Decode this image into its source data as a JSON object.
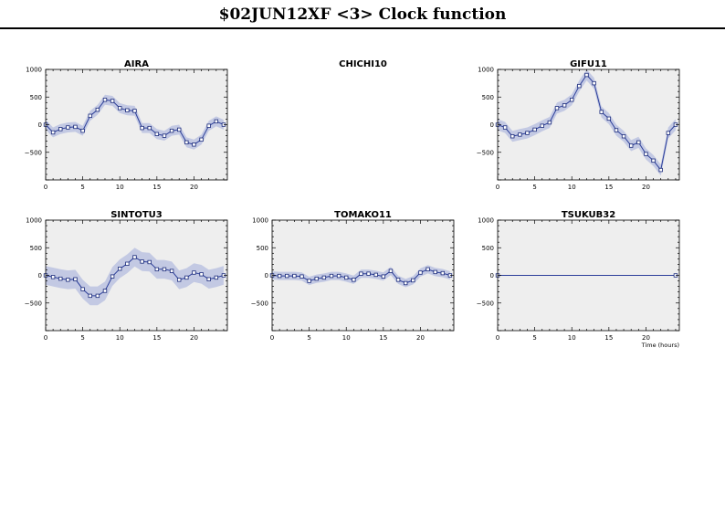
{
  "header": {
    "title": "$02JUN12XF <3>  Clock function"
  },
  "chart_data": [
    {
      "type": "line",
      "title": "AIRA",
      "xlabel": "",
      "xlim": [
        0,
        24.5
      ],
      "ylim": [
        -1000,
        1000
      ],
      "xticks": [
        0,
        5,
        10,
        15,
        20
      ],
      "yticks": [
        -500,
        0,
        500,
        1000
      ],
      "band": 90,
      "x": [
        0,
        1,
        2,
        3,
        4,
        5,
        6,
        7,
        8,
        9,
        10,
        11,
        12,
        13,
        14,
        15,
        16,
        17,
        18,
        19,
        20,
        21,
        22,
        23,
        24
      ],
      "values": [
        0,
        -140,
        -80,
        -50,
        -40,
        -110,
        160,
        270,
        450,
        430,
        300,
        260,
        250,
        -60,
        -60,
        -170,
        -200,
        -110,
        -90,
        -320,
        -360,
        -270,
        -20,
        60,
        0
      ]
    },
    {
      "type": "line",
      "title": "CHICHI10",
      "empty": true
    },
    {
      "type": "line",
      "title": "GIFU11",
      "xlabel": "",
      "xlim": [
        0,
        24.5
      ],
      "ylim": [
        -1000,
        1000
      ],
      "xticks": [
        0,
        5,
        10,
        15,
        20
      ],
      "yticks": [
        -500,
        0,
        500,
        1000
      ],
      "band": 100,
      "x": [
        0,
        1,
        2,
        3,
        4,
        5,
        6,
        7,
        8,
        9,
        10,
        11,
        12,
        13,
        14,
        15,
        16,
        17,
        18,
        19,
        20,
        21,
        22,
        23,
        24
      ],
      "values": [
        0,
        -50,
        -210,
        -180,
        -150,
        -90,
        -20,
        40,
        300,
        350,
        450,
        700,
        900,
        750,
        230,
        110,
        -100,
        -210,
        -380,
        -320,
        -530,
        -650,
        -820,
        -150,
        0
      ]
    },
    {
      "type": "line",
      "title": "SINTOTU3",
      "xlabel": "",
      "xlim": [
        0,
        24.5
      ],
      "ylim": [
        -1000,
        1000
      ],
      "xticks": [
        0,
        5,
        10,
        15,
        20
      ],
      "yticks": [
        -500,
        0,
        500,
        1000
      ],
      "band": 170,
      "x": [
        0,
        1,
        2,
        3,
        4,
        5,
        6,
        7,
        8,
        9,
        10,
        11,
        12,
        13,
        14,
        15,
        16,
        17,
        18,
        19,
        20,
        21,
        22,
        23,
        24
      ],
      "values": [
        0,
        -30,
        -60,
        -80,
        -70,
        -250,
        -370,
        -370,
        -280,
        -20,
        120,
        210,
        330,
        250,
        240,
        110,
        110,
        80,
        -80,
        -40,
        50,
        20,
        -70,
        -40,
        0
      ]
    },
    {
      "type": "line",
      "title": "TOMAKO11",
      "xlabel": "",
      "xlim": [
        0,
        24.5
      ],
      "ylim": [
        -1000,
        1000
      ],
      "xticks": [
        0,
        5,
        10,
        15,
        20
      ],
      "yticks": [
        -500,
        0,
        500,
        1000
      ],
      "band": 75,
      "x": [
        0,
        1,
        2,
        3,
        4,
        5,
        6,
        7,
        8,
        9,
        10,
        11,
        12,
        13,
        14,
        15,
        16,
        17,
        18,
        19,
        20,
        21,
        22,
        23,
        24
      ],
      "values": [
        0,
        -10,
        -10,
        -10,
        -20,
        -100,
        -60,
        -40,
        -10,
        -10,
        -40,
        -80,
        30,
        30,
        10,
        -20,
        80,
        -80,
        -140,
        -90,
        50,
        110,
        60,
        40,
        0
      ]
    },
    {
      "type": "line",
      "title": "TSUKUB32",
      "xlabel": "Time (hours)",
      "xlim": [
        0,
        24.5
      ],
      "ylim": [
        -1000,
        1000
      ],
      "xticks": [
        0,
        5,
        10,
        15,
        20
      ],
      "yticks": [
        -500,
        0,
        500,
        1000
      ],
      "band": 0,
      "x": [
        0,
        24
      ],
      "values": [
        0,
        0
      ]
    }
  ]
}
